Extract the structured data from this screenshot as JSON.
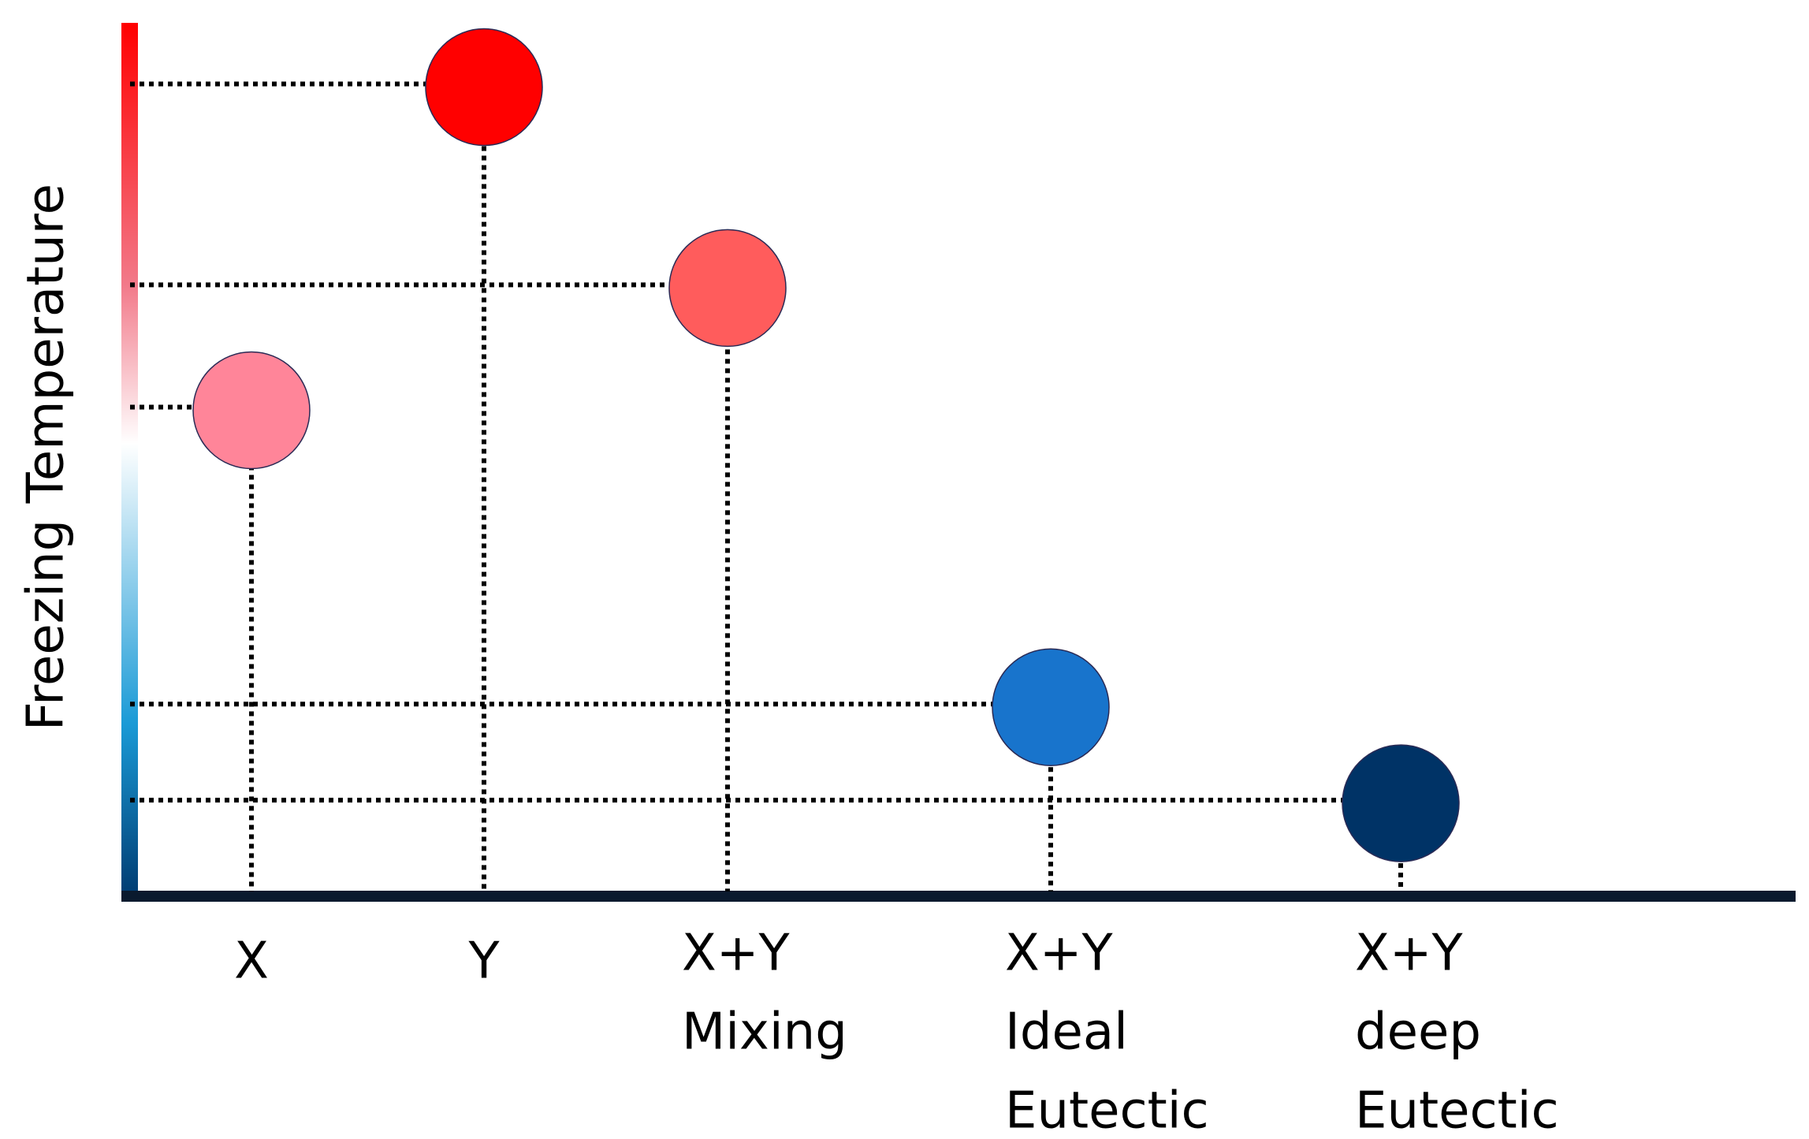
{
  "chart_data": {
    "type": "scatter",
    "y_label": "Freezing Temperature",
    "categories": [
      [
        "X"
      ],
      [
        "Y"
      ],
      [
        "X+Y",
        "Mixing"
      ],
      [
        "X+Y",
        "Ideal",
        "Eutectic"
      ],
      [
        "X+Y",
        "deep",
        "Eutectic"
      ]
    ],
    "values": [
      56,
      93,
      70,
      22,
      11
    ],
    "colors": [
      "#ff8599",
      "#ff0000",
      "#ff5c5c",
      "#1874cc",
      "#003366"
    ],
    "ylim": [
      0,
      100
    ]
  }
}
